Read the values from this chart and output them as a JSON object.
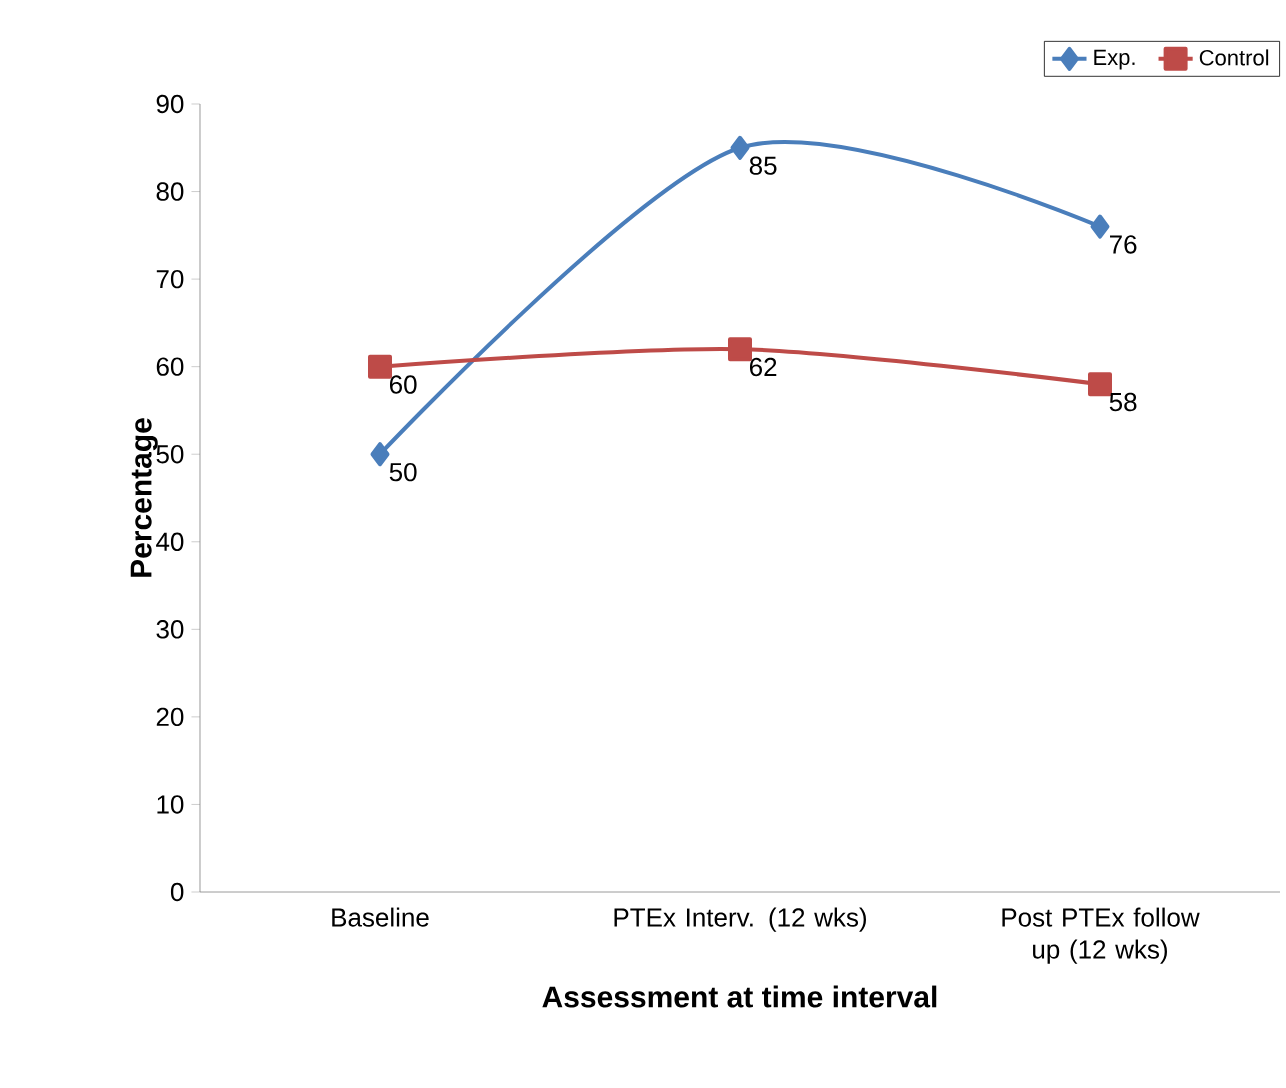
{
  "chart_data": {
    "type": "line",
    "xlabel": "Assessment at time interval",
    "ylabel": "Percentage",
    "categories": [
      "Baseline",
      "PTEx Interv. (12 wks)",
      "Post PTEx follow up (12 wks)"
    ],
    "series": [
      {
        "name": "Exp.",
        "color": "#4a7ebb",
        "values": [
          50,
          85,
          76
        ],
        "marker": "diamond"
      },
      {
        "name": "Control",
        "color": "#be4b48",
        "values": [
          60,
          62,
          58
        ],
        "marker": "square"
      }
    ],
    "ylim": [
      0,
      90
    ],
    "yticks": [
      0,
      10,
      20,
      30,
      40,
      50,
      60,
      70,
      80,
      90
    ],
    "data_labels": true,
    "legend": "top right",
    "grid": false,
    "line_style": "solid"
  }
}
